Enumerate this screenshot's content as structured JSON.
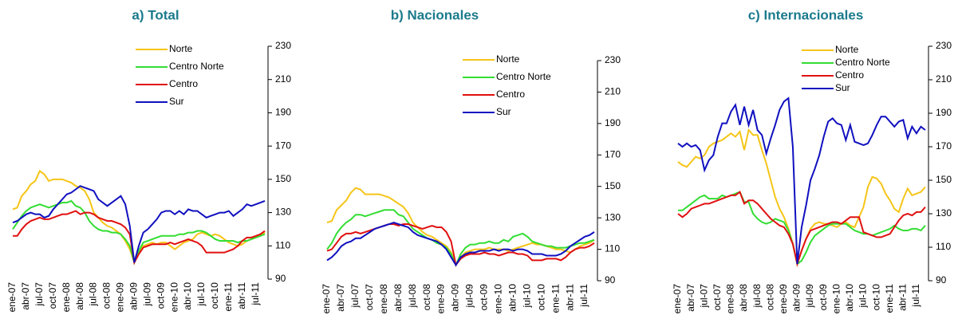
{
  "chart_data": [
    {
      "type": "line",
      "title": "a) Total",
      "categories": [
        "ene-07",
        null,
        null,
        "abr-07",
        null,
        null,
        "jul-07",
        null,
        null,
        "oct-07",
        null,
        null,
        "ene-08",
        null,
        null,
        "abr-08",
        null,
        null,
        "jul-08",
        null,
        null,
        "oct-08",
        null,
        null,
        "ene-09",
        null,
        null,
        "abr-09",
        null,
        null,
        "jul-09",
        null,
        null,
        "oct-09",
        null,
        null,
        "ene-10",
        null,
        null,
        "abr-10",
        null,
        null,
        "jul-10",
        null,
        null,
        "oct-10",
        null,
        null,
        "ene-11",
        null,
        null,
        "abr-11",
        null,
        null,
        "jul-11",
        null,
        null
      ],
      "series": [
        {
          "name": "Norte",
          "color": "#f5c518",
          "values": [
            132,
            133,
            140,
            143,
            147,
            149,
            155,
            153,
            149,
            150,
            150,
            150,
            149,
            148,
            146,
            145,
            143,
            138,
            130,
            127,
            124,
            122,
            121,
            119,
            117,
            113,
            108,
            100,
            106,
            110,
            111,
            112,
            111,
            112,
            112,
            110,
            108,
            110,
            112,
            113,
            114,
            117,
            118,
            117,
            116,
            117,
            116,
            114,
            112,
            111,
            110,
            111,
            113,
            114,
            115,
            116,
            118
          ]
        },
        {
          "name": "Centro Norte",
          "color": "#33dd33",
          "values": [
            120,
            124,
            128,
            131,
            133,
            134,
            135,
            134,
            133,
            134,
            135,
            136,
            136,
            137,
            134,
            133,
            130,
            125,
            122,
            120,
            119,
            119,
            118,
            118,
            117,
            114,
            110,
            100,
            107,
            112,
            113,
            114,
            115,
            116,
            116,
            116,
            116,
            117,
            117,
            118,
            118,
            119,
            119,
            118,
            116,
            114,
            113,
            113,
            113,
            113,
            112,
            113,
            113,
            114,
            115,
            116,
            117
          ]
        },
        {
          "name": "Centro",
          "color": "#e01010",
          "values": [
            116,
            116,
            120,
            123,
            125,
            126,
            127,
            126,
            126,
            127,
            128,
            129,
            129,
            130,
            131,
            129,
            130,
            130,
            129,
            127,
            126,
            125,
            125,
            124,
            123,
            121,
            117,
            100,
            105,
            109,
            110,
            111,
            111,
            111,
            111,
            112,
            111,
            112,
            113,
            114,
            113,
            112,
            110,
            106,
            106,
            106,
            106,
            106,
            107,
            108,
            110,
            113,
            115,
            115,
            116,
            117,
            119
          ]
        },
        {
          "name": "Sur",
          "color": "#1010c0",
          "values": [
            124,
            125,
            127,
            129,
            130,
            129,
            129,
            127,
            128,
            132,
            135,
            138,
            141,
            142,
            144,
            146,
            145,
            144,
            143,
            138,
            136,
            134,
            136,
            138,
            140,
            135,
            122,
            100,
            110,
            118,
            120,
            123,
            126,
            130,
            131,
            131,
            129,
            131,
            129,
            132,
            131,
            131,
            129,
            127,
            128,
            129,
            130,
            130,
            131,
            128,
            130,
            132,
            135,
            134,
            135,
            136,
            137
          ]
        }
      ],
      "ylim": [
        90,
        230
      ],
      "yticks": [
        90,
        110,
        130,
        150,
        170,
        190,
        210,
        230
      ]
    },
    {
      "type": "line",
      "title": "b) Nacionales",
      "categories": [
        "ene-07",
        null,
        null,
        "abr-07",
        null,
        null,
        "jul-07",
        null,
        null,
        "oct-07",
        null,
        null,
        "ene-08",
        null,
        null,
        "abr-08",
        null,
        null,
        "jul-08",
        null,
        null,
        "oct-08",
        null,
        null,
        "ene-09",
        null,
        null,
        "abr-09",
        null,
        null,
        "jul-09",
        null,
        null,
        "oct-09",
        null,
        null,
        "ene-10",
        null,
        null,
        "abr-10",
        null,
        null,
        "jul-10",
        null,
        null,
        "oct-10",
        null,
        null,
        "ene-11",
        null,
        null,
        "abr-11",
        null,
        null,
        "jul-11",
        null,
        null
      ],
      "series": [
        {
          "name": "Norte",
          "color": "#f5c518",
          "values": [
            127,
            128,
            135,
            138,
            141,
            146,
            149,
            148,
            145,
            145,
            145,
            145,
            144,
            143,
            141,
            139,
            137,
            133,
            127,
            124,
            121,
            119,
            118,
            116,
            114,
            112,
            108,
            100,
            105,
            108,
            109,
            110,
            110,
            110,
            111,
            110,
            110,
            110,
            109,
            110,
            111,
            112,
            113,
            114,
            113,
            113,
            112,
            111,
            110,
            110,
            109,
            108,
            110,
            112,
            113,
            114,
            116
          ]
        },
        {
          "name": "Centro Norte",
          "color": "#33dd33",
          "values": [
            110,
            114,
            120,
            124,
            127,
            129,
            132,
            132,
            131,
            132,
            133,
            134,
            135,
            135,
            135,
            132,
            131,
            127,
            123,
            121,
            119,
            117,
            116,
            114,
            113,
            111,
            107,
            100,
            107,
            111,
            113,
            113,
            114,
            114,
            115,
            114,
            114,
            116,
            115,
            118,
            119,
            120,
            118,
            115,
            114,
            113,
            112,
            112,
            111,
            111,
            111,
            112,
            113,
            114,
            114,
            115,
            116
          ]
        },
        {
          "name": "Centro",
          "color": "#e01010",
          "values": [
            109,
            110,
            114,
            118,
            120,
            120,
            121,
            120,
            121,
            122,
            123,
            124,
            125,
            126,
            126,
            125,
            126,
            126,
            125,
            124,
            123,
            124,
            125,
            124,
            124,
            121,
            115,
            100,
            104,
            106,
            107,
            107,
            107,
            108,
            107,
            107,
            106,
            107,
            108,
            108,
            107,
            107,
            106,
            103,
            103,
            103,
            104,
            104,
            104,
            103,
            105,
            108,
            110,
            111,
            111,
            112,
            114
          ]
        },
        {
          "name": "Sur",
          "color": "#1010c0",
          "values": [
            103,
            105,
            108,
            112,
            114,
            115,
            117,
            117,
            119,
            121,
            123,
            124,
            125,
            126,
            127,
            126,
            125,
            124,
            121,
            119,
            118,
            117,
            116,
            115,
            113,
            110,
            105,
            100,
            105,
            107,
            108,
            108,
            109,
            109,
            109,
            110,
            109,
            110,
            110,
            109,
            110,
            110,
            109,
            107,
            107,
            107,
            106,
            106,
            106,
            107,
            109,
            112,
            114,
            116,
            118,
            119,
            121
          ]
        }
      ],
      "ylim": [
        90,
        230
      ],
      "yticks": [
        90,
        110,
        130,
        150,
        170,
        190,
        210,
        230
      ]
    },
    {
      "type": "line",
      "title": "c) Internacionales",
      "categories": [
        "ene-07",
        null,
        null,
        "abr-07",
        null,
        null,
        "jul-07",
        null,
        null,
        "oct-07",
        null,
        null,
        "ene-08",
        null,
        null,
        "abr-08",
        null,
        null,
        "jul-08",
        null,
        null,
        "oct-08",
        null,
        null,
        "ene-09",
        null,
        null,
        "abr-09",
        null,
        null,
        "jul-09",
        null,
        null,
        "oct-09",
        null,
        null,
        "ene-10",
        null,
        null,
        "abr-10",
        null,
        null,
        "jul-10",
        null,
        null,
        "oct-10",
        null,
        null,
        "ene-11",
        null,
        null,
        "abr-11",
        null,
        null,
        "jul-11",
        null,
        null
      ],
      "series": [
        {
          "name": "Norte",
          "color": "#f5c518",
          "values": [
            161,
            159,
            158,
            161,
            164,
            163,
            165,
            170,
            172,
            173,
            174,
            176,
            178,
            176,
            179,
            168,
            180,
            177,
            177,
            168,
            160,
            150,
            140,
            133,
            128,
            121,
            112,
            100,
            108,
            115,
            121,
            124,
            125,
            124,
            124,
            123,
            122,
            124,
            125,
            123,
            122,
            128,
            134,
            146,
            152,
            151,
            148,
            142,
            138,
            133,
            131,
            139,
            145,
            141,
            142,
            143,
            146
          ]
        },
        {
          "name": "Centro Norte",
          "color": "#33dd33",
          "values": [
            132,
            132,
            134,
            136,
            138,
            140,
            141,
            139,
            139,
            139,
            141,
            140,
            141,
            142,
            143,
            137,
            137,
            130,
            127,
            125,
            124,
            125,
            127,
            126,
            125,
            120,
            112,
            100,
            102,
            107,
            113,
            117,
            119,
            121,
            123,
            124,
            124,
            124,
            124,
            122,
            120,
            119,
            118,
            118,
            117,
            118,
            119,
            120,
            121,
            123,
            121,
            120,
            120,
            121,
            121,
            120,
            123
          ]
        },
        {
          "name": "Centro",
          "color": "#e01010",
          "values": [
            130,
            128,
            130,
            133,
            134,
            135,
            136,
            136,
            137,
            138,
            139,
            140,
            141,
            141,
            143,
            136,
            138,
            138,
            136,
            133,
            130,
            127,
            125,
            123,
            122,
            118,
            112,
            100,
            108,
            115,
            120,
            121,
            122,
            123,
            124,
            125,
            125,
            124,
            126,
            128,
            128,
            128,
            119,
            118,
            117,
            116,
            116,
            117,
            118,
            122,
            126,
            129,
            130,
            129,
            131,
            131,
            134
          ]
        },
        {
          "name": "Sur",
          "color": "#1010c0",
          "values": [
            172,
            170,
            172,
            170,
            171,
            168,
            156,
            162,
            165,
            176,
            184,
            184,
            191,
            195,
            183,
            194,
            183,
            192,
            180,
            177,
            166,
            175,
            183,
            192,
            197,
            199,
            170,
            100,
            122,
            135,
            150,
            157,
            165,
            176,
            185,
            187,
            184,
            183,
            174,
            183,
            173,
            172,
            171,
            172,
            177,
            183,
            188,
            188,
            185,
            182,
            185,
            186,
            175,
            182,
            178,
            182,
            180
          ]
        }
      ],
      "ylim": [
        90,
        230
      ],
      "yticks": [
        90,
        110,
        130,
        150,
        170,
        190,
        210,
        230
      ]
    }
  ]
}
